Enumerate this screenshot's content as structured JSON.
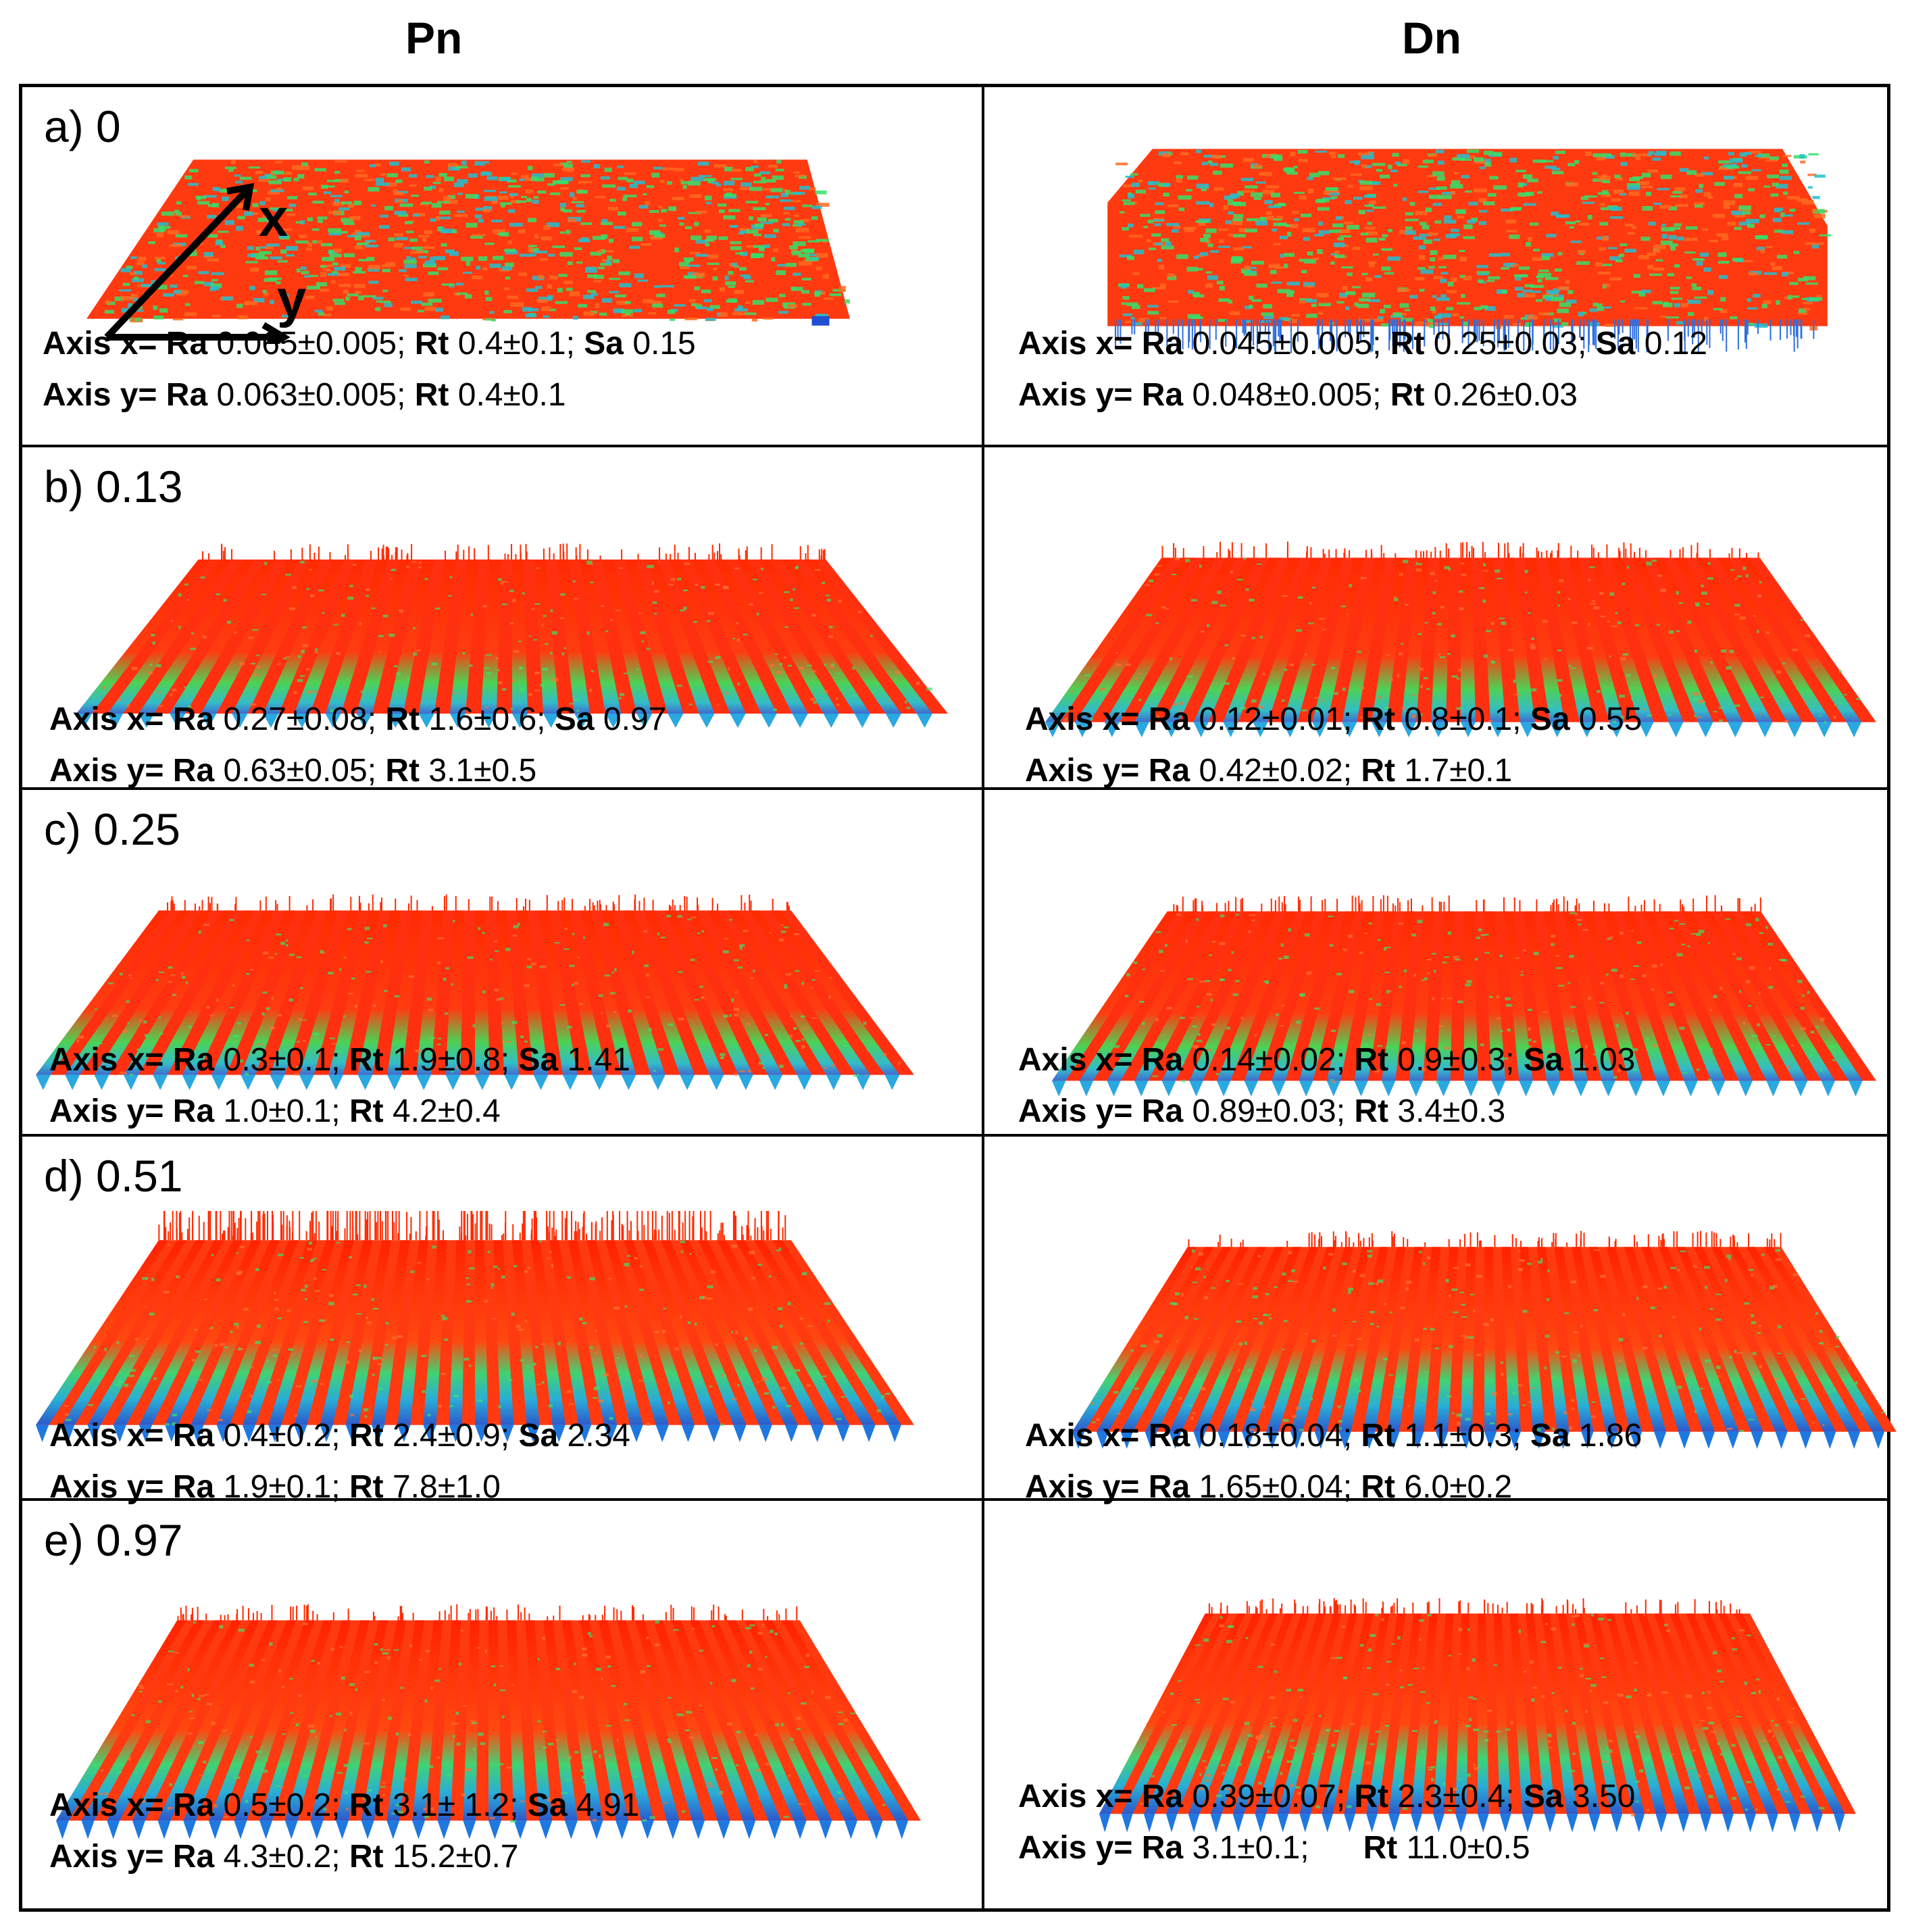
{
  "columns": {
    "pn": "Pn",
    "dn": "Dn"
  },
  "axes_overlay": {
    "x": "x",
    "y": "y"
  },
  "labels": {
    "axis_x": "Axis x=",
    "axis_y": "Axis y=",
    "ra": "Ra",
    "rt": "Rt",
    "sa": "Sa"
  },
  "rows": [
    {
      "label": "a) 0",
      "pn": {
        "x": {
          "ra": "0.065±0.005;",
          "rt": "0.4±0.1;",
          "sa": "0.15"
        },
        "y": {
          "ra": "0.063±0.005;",
          "rt": "0.4±0.1"
        }
      },
      "dn": {
        "x": {
          "ra": "0.045±0.005;",
          "rt": "0.25±0.03;",
          "sa": "0.12"
        },
        "y": {
          "ra": "0.048±0.005;",
          "rt": "0.26±0.03"
        }
      }
    },
    {
      "label": "b) 0.13",
      "pn": {
        "x": {
          "ra": "0.27±0.08;",
          "rt": "1.6±0.6;",
          "sa": "0.97"
        },
        "y": {
          "ra": "0.63±0.05;",
          "rt": "3.1±0.5"
        }
      },
      "dn": {
        "x": {
          "ra": "0.12±0.01;",
          "rt": "0.8±0.1;",
          "sa": "0.55"
        },
        "y": {
          "ra": "0.42±0.02;",
          "rt": "1.7±0.1"
        }
      }
    },
    {
      "label": "c) 0.25",
      "pn": {
        "x": {
          "ra": "0.3±0.1;",
          "rt": "1.9±0.8;",
          "sa": "1.41"
        },
        "y": {
          "ra": "1.0±0.1;",
          "rt": "4.2±0.4"
        }
      },
      "dn": {
        "x": {
          "ra": "0.14±0.02;",
          "rt": "0.9±0.3;",
          "sa": "1.03"
        },
        "y": {
          "ra": "0.89±0.03;",
          "rt": "3.4±0.3"
        }
      }
    },
    {
      "label": "d) 0.51",
      "pn": {
        "x": {
          "ra": "0.4±0.2;",
          "rt": "2.4±0.9;",
          "sa": "2.34"
        },
        "y": {
          "ra": "1.9±0.1;",
          "rt": "7.8±1.0"
        }
      },
      "dn": {
        "x": {
          "ra": "0.18±0.04;",
          "rt": "1.1±0.3;",
          "sa": "1.86"
        },
        "y": {
          "ra": "1.65±0.04;",
          "rt": "6.0±0.2"
        }
      }
    },
    {
      "label": "e) 0.97",
      "pn": {
        "x": {
          "ra": "0.5±0.2;",
          "rt": "3.1± 1.2;",
          "sa": "4.91"
        },
        "y": {
          "ra": "4.3±0.2;",
          "rt": "15.2±0.7"
        }
      },
      "dn": {
        "x": {
          "ra": "0.39±0.07;",
          "rt": "2.3±0.4;",
          "sa": "3.50"
        },
        "y": {
          "ra": "3.1±0.1;",
          "rt": "11.0±0.5"
        }
      }
    }
  ]
}
